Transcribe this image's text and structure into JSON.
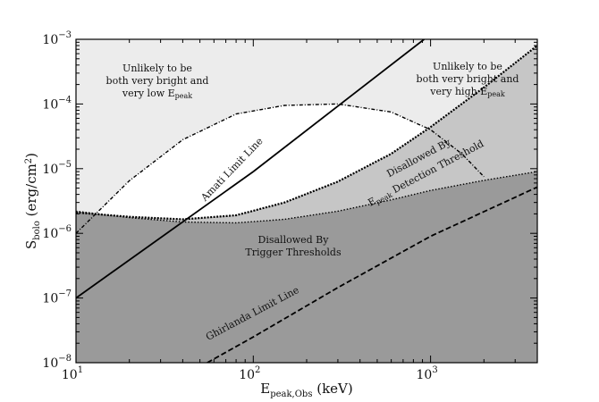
{
  "chart_data": {
    "type": "area",
    "x_scale": "log",
    "y_scale": "log",
    "xlim": [
      10,
      4000
    ],
    "ylim": [
      1e-08,
      0.001
    ],
    "xlabel": {
      "main": "E",
      "sub": "peak,Obs",
      "unit": " (keV)"
    },
    "ylabel": {
      "main": "S",
      "sub": "bolo",
      "unit": " (erg/cm",
      "sup": "2",
      "close": ")"
    },
    "x_ticks": [
      {
        "value": 10,
        "base": "10",
        "exp": "1"
      },
      {
        "value": 100,
        "base": "10",
        "exp": "2"
      },
      {
        "value": 1000,
        "base": "10",
        "exp": "3"
      }
    ],
    "y_ticks": [
      {
        "value": 1e-08,
        "base": "10",
        "exp": "−8"
      },
      {
        "value": 1e-07,
        "base": "10",
        "exp": "−7"
      },
      {
        "value": 1e-06,
        "base": "10",
        "exp": "−6"
      },
      {
        "value": 1e-05,
        "base": "10",
        "exp": "−5"
      },
      {
        "value": 0.0001,
        "base": "10",
        "exp": "−4"
      },
      {
        "value": 0.001,
        "base": "10",
        "exp": "−3"
      }
    ],
    "grid": false,
    "colors": {
      "background": "#ffffff",
      "unlikely_region": "#ececec",
      "epeak_threshold_region": "#c6c6c6",
      "trigger_region": "#9a9a9a",
      "lines": "#000000"
    },
    "series": [
      {
        "name": "Amati Limit Line",
        "style": "solid",
        "points": [
          [
            10,
            1e-07
          ],
          [
            100,
            9e-06
          ],
          [
            920,
            0.001
          ]
        ]
      },
      {
        "name": "Ghirlanda Limit Line",
        "style": "dashed",
        "points": [
          [
            55,
            1e-08
          ],
          [
            100,
            2.5e-08
          ],
          [
            300,
            1.45e-07
          ],
          [
            1000,
            9e-07
          ],
          [
            4000,
            5.2e-06
          ]
        ]
      },
      {
        "style": "dotted",
        "role": "trigger threshold",
        "points": [
          [
            10,
            2.2e-06
          ],
          [
            20,
            1.75e-06
          ],
          [
            40,
            1.5e-06
          ],
          [
            80,
            1.45e-06
          ],
          [
            150,
            1.65e-06
          ],
          [
            300,
            2.2e-06
          ],
          [
            600,
            3.3e-06
          ],
          [
            1000,
            4.6e-06
          ],
          [
            2000,
            6.6e-06
          ],
          [
            4000,
            9e-06
          ]
        ]
      },
      {
        "style": "dash-dot dense",
        "role": "E_peak detection threshold",
        "points": [
          [
            10,
            2.1e-06
          ],
          [
            20,
            1.8e-06
          ],
          [
            40,
            1.65e-06
          ],
          [
            80,
            1.9e-06
          ],
          [
            150,
            3e-06
          ],
          [
            300,
            6.3e-06
          ],
          [
            600,
            1.7e-05
          ],
          [
            1000,
            4.4e-05
          ],
          [
            2000,
            0.00018
          ],
          [
            4000,
            0.0008
          ]
        ]
      },
      {
        "style": "dash-dot",
        "role": "very bright boundary",
        "points": [
          [
            10,
            1e-06
          ],
          [
            20,
            6.5e-06
          ],
          [
            40,
            2.8e-05
          ],
          [
            80,
            7e-05
          ],
          [
            150,
            9.5e-05
          ],
          [
            300,
            0.0001
          ],
          [
            600,
            7.5e-05
          ],
          [
            1000,
            4e-05
          ],
          [
            1500,
            1.7e-05
          ],
          [
            2000,
            7.5e-06
          ]
        ]
      }
    ],
    "annotations": {
      "low_epeak": {
        "line1": "Unlikely to be",
        "line2": "both very bright and",
        "line3_main": "very low E",
        "line3_sub": "peak"
      },
      "high_epeak": {
        "line1": "Unlikely to be",
        "line2": "both very bright and",
        "line3_main": "very high E",
        "line3_sub": "peak"
      },
      "amati_label": "Amati Limit Line",
      "ghirlanda_label": "Ghirlanda Limit Line",
      "epeak_region": {
        "line1": "Disallowed By",
        "line2_main": "E",
        "line2_sub": "peak",
        "line2_rest": " Detection Threshold"
      },
      "trigger_region": {
        "line1": "Disallowed By",
        "line2": "Trigger Thresholds"
      }
    }
  }
}
